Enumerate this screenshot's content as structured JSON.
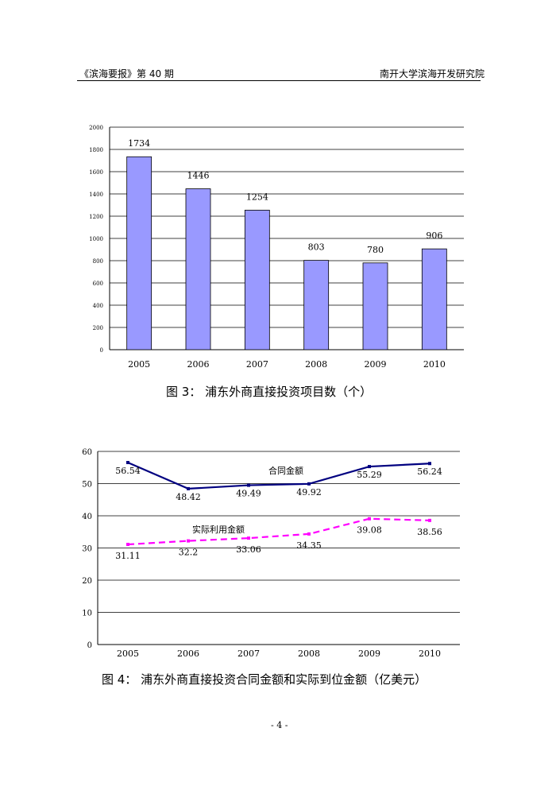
{
  "header": {
    "left": "《滨海要报》第 40 期",
    "right": "南开大学滨海开发研究院"
  },
  "figure3": {
    "caption": "图 3： 浦东外商直接投资项目数（个）"
  },
  "figure4": {
    "caption": "图 4： 浦东外商直接投资合同金额和实际到位金额（亿美元）"
  },
  "page_number": "- 4 -",
  "chart_data": [
    {
      "type": "bar",
      "title": "",
      "categories": [
        "2005",
        "2006",
        "2007",
        "2008",
        "2009",
        "2010"
      ],
      "values": [
        1734,
        1446,
        1254,
        803,
        780,
        906
      ],
      "value_labels": [
        "1734",
        "1446",
        "1254",
        "803",
        "780",
        "906"
      ],
      "ylim": [
        0,
        2000
      ],
      "yticks": [
        0,
        200,
        400,
        600,
        800,
        1000,
        1200,
        1400,
        1600,
        1800,
        2000
      ],
      "bar_color": "#9999ff",
      "grid": true,
      "legend": "none"
    },
    {
      "type": "line",
      "title": "",
      "categories": [
        "2005",
        "2006",
        "2007",
        "2008",
        "2009",
        "2010"
      ],
      "ylim": [
        0,
        60
      ],
      "yticks": [
        0,
        10,
        20,
        30,
        40,
        50,
        60
      ],
      "grid": true,
      "series": [
        {
          "name": "合同金额",
          "values": [
            56.54,
            48.42,
            49.49,
            49.92,
            55.29,
            56.24
          ],
          "labels": [
            "56.54",
            "48.42",
            "49.49",
            "49.92",
            "55.29",
            "56.24"
          ],
          "color": "#000080",
          "dash": false
        },
        {
          "name": "实际利用金额",
          "values": [
            31.11,
            32.2,
            33.06,
            34.35,
            39.08,
            38.56
          ],
          "labels": [
            "31.11",
            "32.2",
            "33.06",
            "34.35",
            "39.08",
            "38.56"
          ],
          "color": "#ff00ff",
          "dash": true
        }
      ]
    }
  ]
}
